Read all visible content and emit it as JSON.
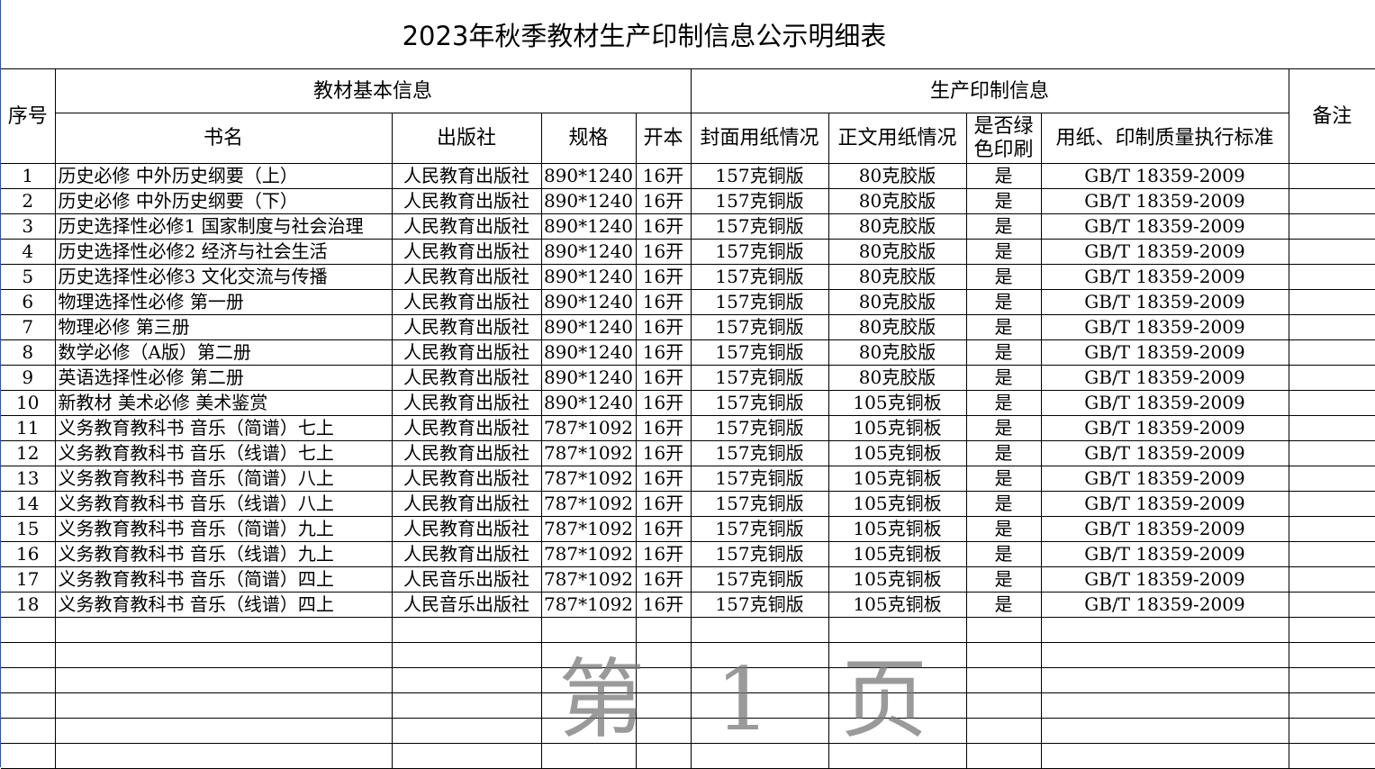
{
  "title": "2023年秋季教材生产印制信息公示明细表",
  "header": {
    "seq": "序号",
    "group_basic": "教材基本信息",
    "group_print": "生产印制信息",
    "remark": "备注",
    "book": "书名",
    "publisher": "出版社",
    "spec": "规格",
    "format": "开本",
    "cover_paper": "封面用纸情况",
    "body_paper": "正文用纸情况",
    "green": "是否绿色印刷",
    "standard": "用纸、印制质量执行标准"
  },
  "rows": [
    [
      "1",
      "历史必修  中外历史纲要（上）",
      "人民教育出版社",
      "890*1240",
      "16开",
      "157克铜版",
      "80克胶版",
      "是",
      "GB/T  18359-2009"
    ],
    [
      "2",
      "历史必修  中外历史纲要（下）",
      "人民教育出版社",
      "890*1240",
      "16开",
      "157克铜版",
      "80克胶版",
      "是",
      "GB/T  18359-2009"
    ],
    [
      "3",
      "历史选择性必修1  国家制度与社会治理",
      "人民教育出版社",
      "890*1240",
      "16开",
      "157克铜版",
      "80克胶版",
      "是",
      "GB/T  18359-2009"
    ],
    [
      "4",
      "历史选择性必修2  经济与社会生活",
      "人民教育出版社",
      "890*1240",
      "16开",
      "157克铜版",
      "80克胶版",
      "是",
      "GB/T  18359-2009"
    ],
    [
      "5",
      "历史选择性必修3  文化交流与传播",
      "人民教育出版社",
      "890*1240",
      "16开",
      "157克铜版",
      "80克胶版",
      "是",
      "GB/T  18359-2009"
    ],
    [
      "6",
      "物理选择性必修  第一册",
      "人民教育出版社",
      "890*1240",
      "16开",
      "157克铜版",
      "80克胶版",
      "是",
      "GB/T  18359-2009"
    ],
    [
      "7",
      "物理必修  第三册",
      "人民教育出版社",
      "890*1240",
      "16开",
      "157克铜版",
      "80克胶版",
      "是",
      "GB/T  18359-2009"
    ],
    [
      "8",
      "数学必修（A版）第二册",
      "人民教育出版社",
      "890*1240",
      "16开",
      "157克铜版",
      "80克胶版",
      "是",
      "GB/T  18359-2009"
    ],
    [
      "9",
      "英语选择性必修  第二册",
      "人民教育出版社",
      "890*1240",
      "16开",
      "157克铜版",
      "80克胶版",
      "是",
      "GB/T  18359-2009"
    ],
    [
      "10",
      "新教材  美术必修  美术鉴赏",
      "人民教育出版社",
      "890*1240",
      "16开",
      "157克铜版",
      "105克铜板",
      "是",
      "GB/T  18359-2009"
    ],
    [
      "11",
      "义务教育教科书  音乐（简谱）七上",
      "人民教育出版社",
      "787*1092",
      "16开",
      "157克铜版",
      "105克铜板",
      "是",
      "GB/T  18359-2009"
    ],
    [
      "12",
      "义务教育教科书  音乐（线谱）七上",
      "人民教育出版社",
      "787*1092",
      "16开",
      "157克铜版",
      "105克铜板",
      "是",
      "GB/T  18359-2009"
    ],
    [
      "13",
      "义务教育教科书  音乐（简谱）八上",
      "人民教育出版社",
      "787*1092",
      "16开",
      "157克铜版",
      "105克铜板",
      "是",
      "GB/T  18359-2009"
    ],
    [
      "14",
      "义务教育教科书  音乐（线谱）八上",
      "人民教育出版社",
      "787*1092",
      "16开",
      "157克铜版",
      "105克铜板",
      "是",
      "GB/T  18359-2009"
    ],
    [
      "15",
      "义务教育教科书  音乐（简谱）九上",
      "人民教育出版社",
      "787*1092",
      "16开",
      "157克铜版",
      "105克铜板",
      "是",
      "GB/T  18359-2009"
    ],
    [
      "16",
      "义务教育教科书  音乐（线谱）九上",
      "人民教育出版社",
      "787*1092",
      "16开",
      "157克铜版",
      "105克铜板",
      "是",
      "GB/T  18359-2009"
    ],
    [
      "17",
      "义务教育教科书  音乐（简谱）四上",
      "人民音乐出版社",
      "787*1092",
      "16开",
      "157克铜版",
      "105克铜板",
      "是",
      "GB/T  18359-2009"
    ],
    [
      "18",
      "义务教育教科书  音乐（线谱）四上",
      "人民音乐出版社",
      "787*1092",
      "16开",
      "157克铜版",
      "105克铜板",
      "是",
      "GB/T  18359-2009"
    ]
  ],
  "watermark": "第 1 页"
}
